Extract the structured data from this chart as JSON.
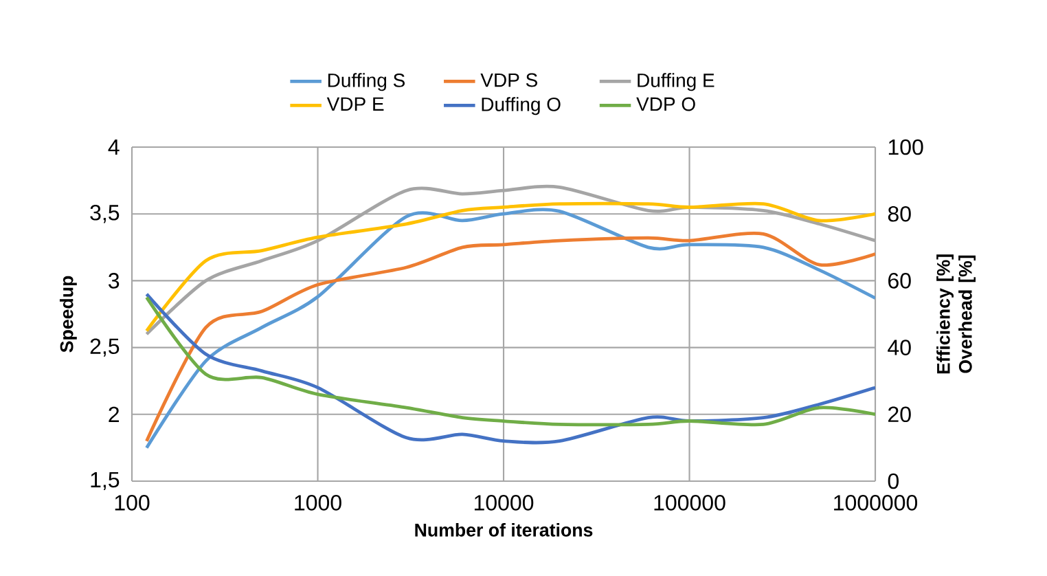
{
  "chart_data": {
    "type": "line",
    "xlabel": "Number of iterations",
    "ylabel": "Speedup",
    "y2label": "Efficiency [%] Overhead [%]",
    "x": [
      120,
      250,
      500,
      1000,
      3000,
      6000,
      10000,
      20000,
      60000,
      100000,
      250000,
      500000,
      1000000
    ],
    "series": [
      {
        "name": "Duffing S",
        "color": "#5b9bd5",
        "values": [
          1.75,
          2.4,
          2.65,
          2.88,
          3.48,
          3.45,
          3.5,
          3.52,
          3.25,
          3.27,
          3.25,
          3.08,
          2.87
        ]
      },
      {
        "name": "VDP S",
        "color": "#ed7d31",
        "values": [
          1.8,
          2.65,
          2.77,
          2.97,
          3.1,
          3.25,
          3.27,
          3.3,
          3.32,
          3.3,
          3.35,
          3.12,
          3.2
        ]
      },
      {
        "name": "Duffing E",
        "color": "#a5a5a5",
        "axis": "y2",
        "values": [
          44,
          60,
          66,
          72,
          87,
          86,
          87,
          88,
          81,
          82,
          81,
          77,
          72
        ]
      },
      {
        "name": "VDP E",
        "color": "#ffc000",
        "axis": "y2",
        "values": [
          45,
          66,
          69,
          73,
          77,
          81,
          82,
          83,
          83,
          82,
          83,
          78,
          80
        ]
      },
      {
        "name": "Duffing O",
        "color": "#4472c4",
        "axis": "y2",
        "values": [
          56,
          38,
          33,
          28,
          13,
          14,
          12,
          12,
          19,
          18,
          19,
          23,
          28
        ]
      },
      {
        "name": "VDP O",
        "color": "#70ad47",
        "axis": "y2",
        "values": [
          55,
          32,
          31,
          26,
          22,
          19,
          18,
          17,
          17,
          18,
          17,
          22,
          20
        ]
      }
    ],
    "log": "x",
    "xlim": [
      100,
      1000000
    ],
    "xticks": [
      100,
      1000,
      10000,
      100000,
      1000000
    ],
    "ylim": [
      1.5,
      4
    ],
    "yticks": [
      {
        "value": 1.5,
        "label": "1,5"
      },
      2,
      {
        "value": 2.5,
        "label": "2,5"
      },
      3,
      {
        "value": 3.5,
        "label": "3,5"
      },
      4
    ],
    "y2lim": [
      0,
      100
    ],
    "y2ticks": [
      0,
      20,
      40,
      60,
      80,
      100
    ],
    "grid": true,
    "legend": "top",
    "marker": "none",
    "line_style": "solid"
  }
}
